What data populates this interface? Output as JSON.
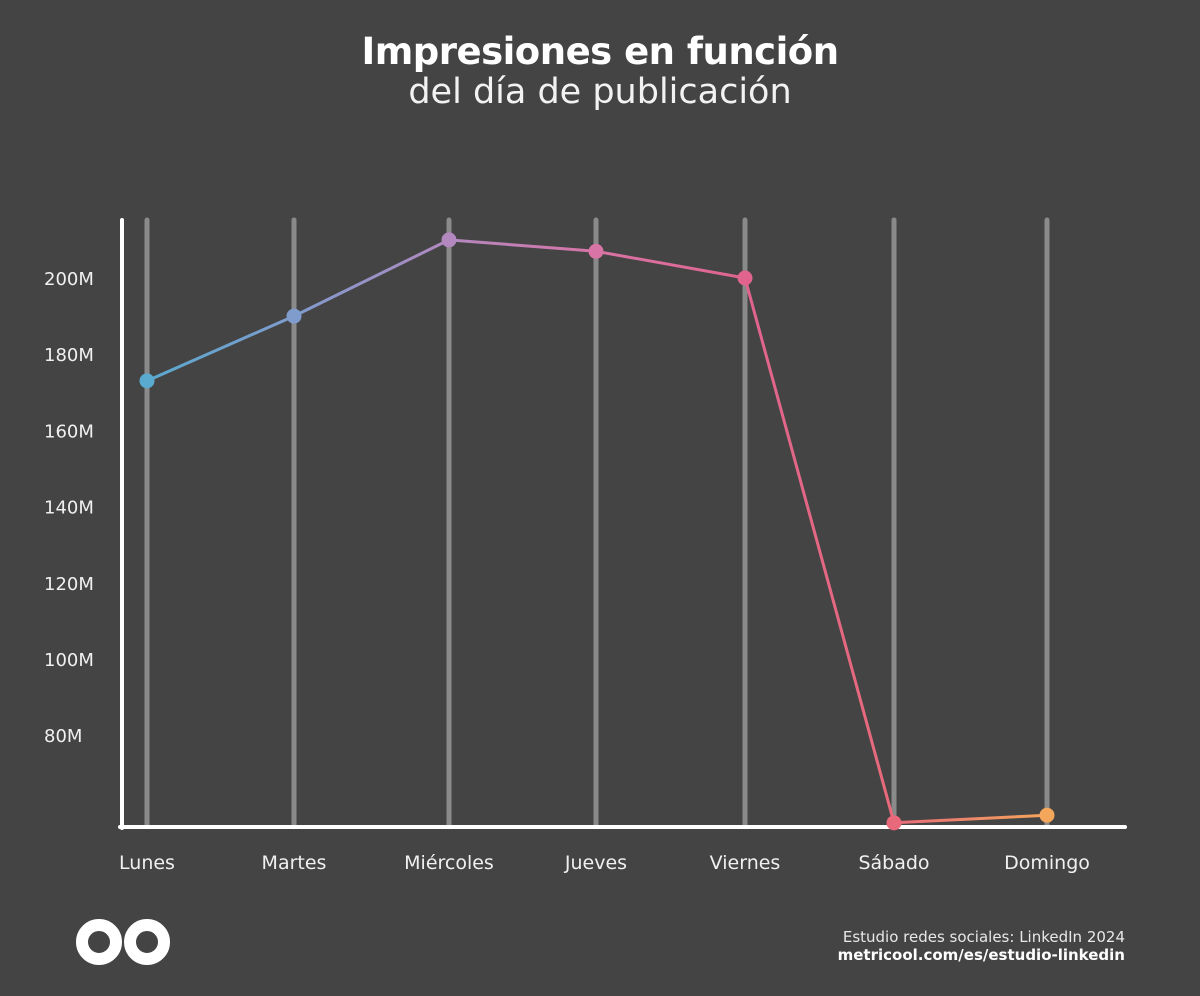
{
  "chart_data": {
    "type": "line",
    "title": "Impresiones en función",
    "subtitle": "del día de publicación",
    "categories": [
      "Lunes",
      "Martes",
      "Miércoles",
      "Jueves",
      "Viernes",
      "Sábado",
      "Domingo"
    ],
    "values": [
      173,
      190,
      210,
      207,
      200,
      57,
      59
    ],
    "unit": "M",
    "yticks": [
      "80M",
      "100M",
      "120M",
      "140M",
      "160M",
      "180M",
      "200M"
    ],
    "ytick_values": [
      80,
      100,
      120,
      140,
      160,
      180,
      200
    ],
    "ylim": [
      55.6,
      215
    ],
    "grid": "vertical",
    "point_colors": [
      "#5aa9cf",
      "#7f9ccd",
      "#b288bf",
      "#d874a6",
      "#e0648e",
      "#e86a7a",
      "#f4a65a"
    ]
  },
  "footer": {
    "source": "Estudio redes sociales: LinkedIn 2024",
    "url": "metricool.com/es/estudio-linkedin"
  },
  "logo": {
    "name": "metricool-logo"
  }
}
